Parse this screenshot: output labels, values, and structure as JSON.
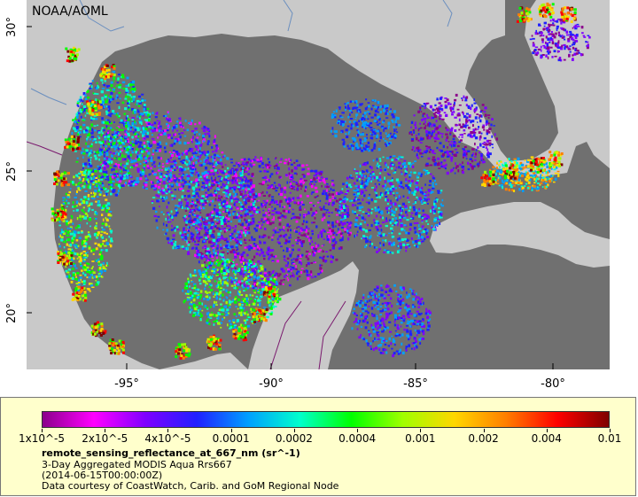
{
  "map": {
    "credit": "NOAA/AOML",
    "colors": {
      "land": "#c9c9c9",
      "ocean_nodata": "#707070",
      "border": "#7a1a6e",
      "river": "#6b8fbf"
    },
    "lat_labels": [
      "30°",
      "25°",
      "20°"
    ],
    "lon_labels": [
      "-95°",
      "-90°",
      "-85°",
      "-80°"
    ]
  },
  "legend": {
    "variable": "remote_sensing_reflectance_at_667_nm (sr^-1)",
    "dataset": "3-Day Aggregated MODIS Aqua Rrs667",
    "time": "(2014-06-15T00:00:00Z)",
    "source": "Data courtesy of CoastWatch, Carib. and GoM Regional Node",
    "ticks": [
      "1x10^-5",
      "2x10^-5",
      "4x10^-5",
      "0.0001",
      "0.0002",
      "0.0004",
      "0.001",
      "0.002",
      "0.004",
      "0.01"
    ],
    "colorbar_stops": [
      "#8b008b",
      "#ff00ff",
      "#7f00ff",
      "#2020ff",
      "#00a0ff",
      "#00ffcc",
      "#00ff00",
      "#a0ff00",
      "#ffd700",
      "#ff7f00",
      "#ff0000",
      "#7f0000"
    ]
  }
}
